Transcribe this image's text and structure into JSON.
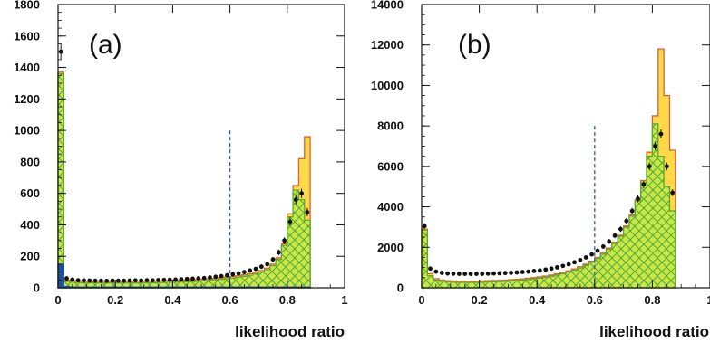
{
  "colors": {
    "mc_total_fill": "#ffd84a",
    "mc_total_line": "#e06030",
    "component_fill": "#c8e84a",
    "component_hatch": "#5aa832",
    "blue_component": "#1c4f9c",
    "data_marker": "#111111",
    "cut_line": "#2a5fbf"
  },
  "chart_data": [
    {
      "type": "histogram",
      "panel_label": "(a)",
      "xlabel": "likelihood ratio",
      "ylabel": "",
      "xlim": [
        0,
        1
      ],
      "ylim": [
        0,
        1800
      ],
      "x_ticks": [
        "0",
        "0.2",
        "0.4",
        "0.6",
        "0.8",
        "1"
      ],
      "y_ticks": [
        "0",
        "200",
        "400",
        "600",
        "800",
        "1000",
        "1200",
        "1400",
        "1600",
        "1800"
      ],
      "cut_x": 0.6,
      "cut_ymax": 1000,
      "bin_width": 0.02,
      "series": [
        {
          "values": [
            1370,
            50,
            46,
            44,
            42,
            42,
            41,
            41,
            40,
            40,
            40,
            40,
            40,
            41,
            41,
            42,
            42,
            43,
            44,
            45,
            46,
            47,
            48,
            50,
            52,
            54,
            57,
            60,
            64,
            68,
            72,
            77,
            83,
            90,
            98,
            110,
            125,
            150,
            190,
            280,
            470,
            650,
            820,
            960
          ]
        },
        {
          "values": [
            1360,
            40,
            36,
            34,
            32,
            32,
            31,
            31,
            30,
            30,
            30,
            30,
            30,
            31,
            31,
            32,
            32,
            33,
            34,
            35,
            36,
            37,
            38,
            40,
            42,
            44,
            47,
            50,
            54,
            58,
            62,
            67,
            73,
            80,
            88,
            100,
            115,
            140,
            180,
            270,
            450,
            620,
            560,
            430
          ]
        },
        {
          "values": [
            150,
            8,
            5,
            4,
            4,
            4,
            4,
            4,
            4,
            4,
            4,
            4,
            4,
            4,
            4,
            4,
            4,
            4,
            4,
            4,
            4,
            4,
            4,
            4,
            4,
            4,
            4,
            4,
            4,
            4,
            4,
            4,
            4,
            4,
            4,
            4,
            4,
            4,
            4,
            4,
            4,
            4,
            4,
            4
          ]
        }
      ],
      "data_points": [
        1500,
        60,
        52,
        48,
        47,
        46,
        45,
        45,
        44,
        46,
        45,
        45,
        46,
        47,
        46,
        48,
        47,
        49,
        50,
        51,
        52,
        54,
        56,
        58,
        60,
        62,
        66,
        70,
        74,
        80,
        86,
        92,
        100,
        110,
        120,
        134,
        150,
        180,
        225,
        300,
        420,
        560,
        600,
        480
      ]
    },
    {
      "type": "histogram",
      "panel_label": "(b)",
      "xlabel": "likelihood ratio",
      "ylabel": "",
      "xlim": [
        0,
        1
      ],
      "ylim": [
        0,
        14000
      ],
      "x_ticks": [
        "0",
        "0.2",
        "0.4",
        "0.6",
        "0.8",
        "1"
      ],
      "y_ticks": [
        "0",
        "2000",
        "4000",
        "6000",
        "8000",
        "10000",
        "12000",
        "14000"
      ],
      "cut_x": 0.6,
      "cut_ymax": 8000,
      "bin_width": 0.02,
      "series": [
        {
          "values": [
            2900,
            700,
            450,
            380,
            350,
            340,
            330,
            330,
            330,
            330,
            340,
            350,
            360,
            370,
            380,
            400,
            420,
            440,
            470,
            500,
            540,
            580,
            630,
            690,
            760,
            840,
            930,
            1040,
            1170,
            1320,
            1500,
            1710,
            1960,
            2250,
            2600,
            3050,
            3600,
            4350,
            5300,
            6700,
            8500,
            11800,
            9500,
            6800
          ]
        },
        {
          "values": [
            2850,
            600,
            380,
            320,
            290,
            280,
            270,
            270,
            270,
            270,
            280,
            290,
            300,
            310,
            320,
            340,
            360,
            380,
            410,
            440,
            480,
            520,
            570,
            630,
            700,
            780,
            870,
            980,
            1110,
            1260,
            1440,
            1650,
            1900,
            2190,
            2540,
            2990,
            3540,
            4280,
            5200,
            6500,
            8100,
            6500,
            5000,
            3800
          ]
        }
      ],
      "data_points": [
        3050,
        950,
        800,
        740,
        710,
        700,
        690,
        690,
        690,
        690,
        690,
        700,
        710,
        720,
        730,
        740,
        760,
        780,
        800,
        830,
        860,
        900,
        950,
        1010,
        1080,
        1160,
        1260,
        1370,
        1500,
        1650,
        1830,
        2040,
        2290,
        2580,
        2900,
        3300,
        3800,
        4400,
        5100,
        6000,
        7000,
        7600,
        6000,
        4700
      ]
    }
  ]
}
